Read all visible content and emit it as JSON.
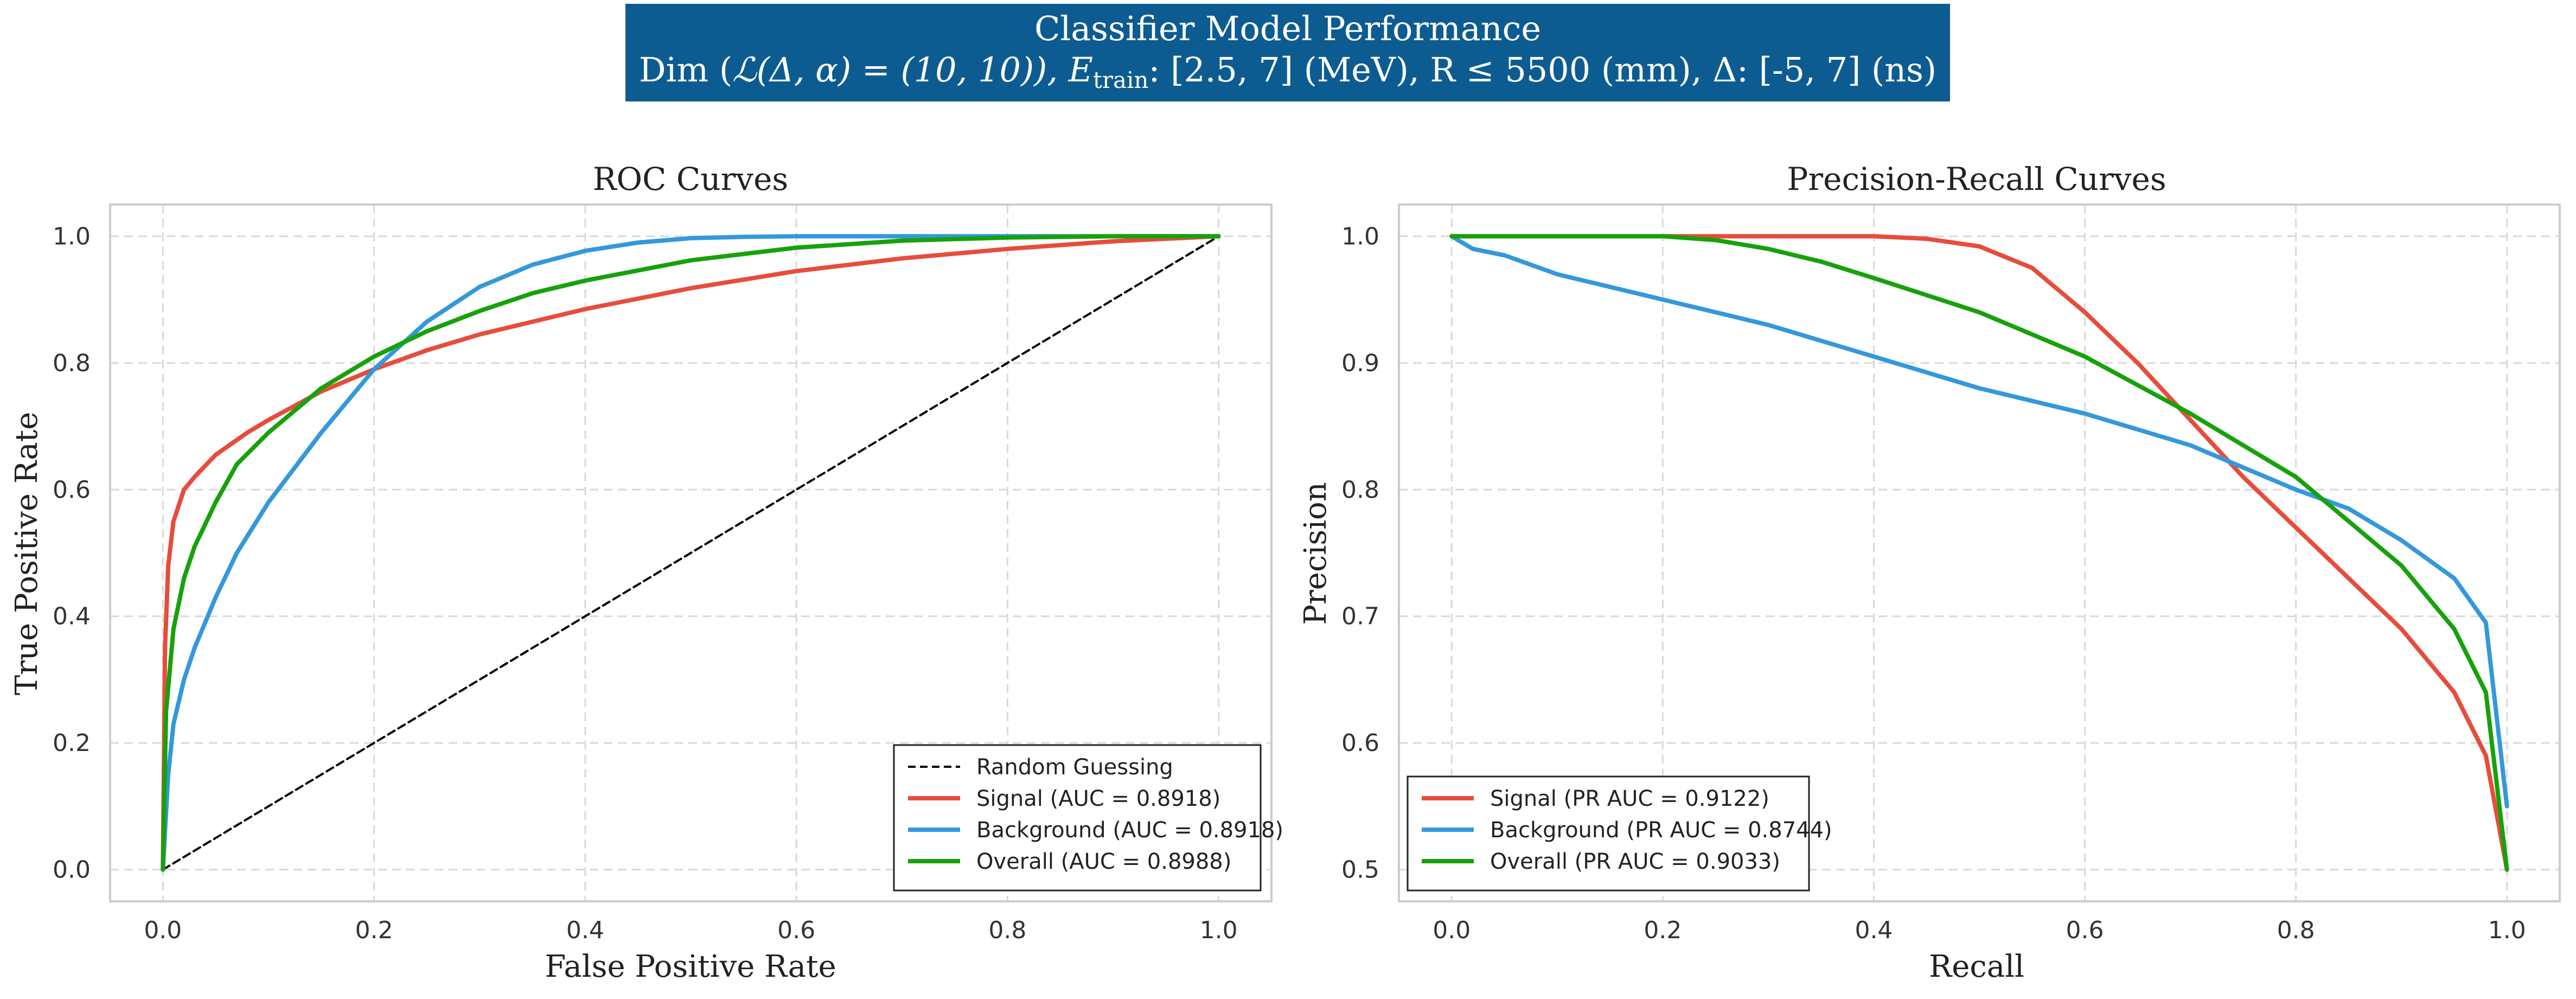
{
  "header": {
    "title_line1": "Classifier Model Performance",
    "title_line2_prefix": "Dim (",
    "title_line2_L": "ℒ(Δ, α) = (10, 10)), E",
    "title_line2_sub": "train",
    "title_line2_rest": ": [2.5, 7] (MeV), R ≤ 5500 (mm), Δ: [-5, 7] (ns)",
    "bg_color": "#0d5c91",
    "text_color": "#ffffff"
  },
  "colors": {
    "signal": "#e74c3c",
    "background": "#3498db",
    "overall": "#17a10c",
    "random": "#000000",
    "grid": "#d9d9d9",
    "frame": "#cccccc"
  },
  "chart_data": [
    {
      "type": "line",
      "title": "ROC Curves",
      "xlabel": "False Positive Rate",
      "ylabel": "True Positive Rate",
      "xlim": [
        -0.05,
        1.05
      ],
      "ylim": [
        -0.05,
        1.05
      ],
      "xticks": [
        0.0,
        0.2,
        0.4,
        0.6,
        0.8,
        1.0
      ],
      "yticks": [
        0.0,
        0.2,
        0.4,
        0.6,
        0.8,
        1.0
      ],
      "xtick_labels": [
        "0.0",
        "0.2",
        "0.4",
        "0.6",
        "0.8",
        "1.0"
      ],
      "ytick_labels": [
        "0.0",
        "0.2",
        "0.4",
        "0.6",
        "0.8",
        "1.0"
      ],
      "grid": true,
      "legend_position": "lower-right",
      "series": [
        {
          "name": "Random Guessing",
          "color_key": "random",
          "dashed": true,
          "x": [
            0,
            1
          ],
          "y": [
            0,
            1
          ]
        },
        {
          "name": "Signal (AUC = 0.8918)",
          "color_key": "signal",
          "x": [
            0,
            0.002,
            0.005,
            0.01,
            0.02,
            0.03,
            0.05,
            0.08,
            0.1,
            0.15,
            0.2,
            0.25,
            0.3,
            0.4,
            0.5,
            0.6,
            0.7,
            0.8,
            0.9,
            1.0
          ],
          "y": [
            0,
            0.35,
            0.48,
            0.55,
            0.6,
            0.62,
            0.655,
            0.69,
            0.71,
            0.755,
            0.79,
            0.82,
            0.845,
            0.885,
            0.918,
            0.945,
            0.965,
            0.98,
            0.992,
            1.0
          ]
        },
        {
          "name": "Background (AUC = 0.8918)",
          "color_key": "background",
          "x": [
            0,
            0.005,
            0.01,
            0.02,
            0.03,
            0.05,
            0.07,
            0.1,
            0.15,
            0.2,
            0.25,
            0.3,
            0.35,
            0.4,
            0.45,
            0.5,
            0.55,
            0.6,
            0.7,
            0.8,
            1.0
          ],
          "y": [
            0,
            0.15,
            0.23,
            0.3,
            0.35,
            0.43,
            0.5,
            0.58,
            0.69,
            0.79,
            0.865,
            0.92,
            0.955,
            0.977,
            0.99,
            0.997,
            0.999,
            1.0,
            1.0,
            1.0,
            1.0
          ]
        },
        {
          "name": "Overall (AUC = 0.8988)",
          "color_key": "overall",
          "x": [
            0,
            0.003,
            0.01,
            0.02,
            0.03,
            0.05,
            0.07,
            0.1,
            0.15,
            0.2,
            0.25,
            0.3,
            0.35,
            0.4,
            0.5,
            0.6,
            0.7,
            0.8,
            0.9,
            1.0
          ],
          "y": [
            0,
            0.25,
            0.38,
            0.46,
            0.51,
            0.58,
            0.64,
            0.69,
            0.76,
            0.81,
            0.85,
            0.882,
            0.91,
            0.93,
            0.962,
            0.982,
            0.993,
            0.998,
            1.0,
            1.0
          ]
        }
      ]
    },
    {
      "type": "line",
      "title": "Precision-Recall Curves",
      "xlabel": "Recall",
      "ylabel": "Precision",
      "xlim": [
        -0.05,
        1.05
      ],
      "ylim": [
        0.475,
        1.025
      ],
      "xticks": [
        0.0,
        0.2,
        0.4,
        0.6,
        0.8,
        1.0
      ],
      "yticks": [
        0.5,
        0.6,
        0.7,
        0.8,
        0.9,
        1.0
      ],
      "xtick_labels": [
        "0.0",
        "0.2",
        "0.4",
        "0.6",
        "0.8",
        "1.0"
      ],
      "ytick_labels": [
        "0.5",
        "0.6",
        "0.7",
        "0.8",
        "0.9",
        "1.0"
      ],
      "grid": true,
      "legend_position": "lower-left",
      "series": [
        {
          "name": "Signal (PR AUC = 0.9122)",
          "color_key": "signal",
          "x": [
            0,
            0.1,
            0.2,
            0.3,
            0.4,
            0.45,
            0.5,
            0.55,
            0.6,
            0.65,
            0.7,
            0.75,
            0.8,
            0.85,
            0.9,
            0.95,
            0.98,
            1.0
          ],
          "y": [
            1.0,
            1.0,
            1.0,
            1.0,
            1.0,
            0.998,
            0.992,
            0.975,
            0.94,
            0.9,
            0.855,
            0.81,
            0.77,
            0.73,
            0.69,
            0.64,
            0.59,
            0.5
          ]
        },
        {
          "name": "Background (PR AUC = 0.8744)",
          "color_key": "background",
          "x": [
            0,
            0.02,
            0.05,
            0.1,
            0.2,
            0.3,
            0.4,
            0.5,
            0.6,
            0.7,
            0.8,
            0.85,
            0.9,
            0.95,
            0.98,
            1.0
          ],
          "y": [
            1.0,
            0.99,
            0.985,
            0.97,
            0.95,
            0.93,
            0.905,
            0.88,
            0.86,
            0.835,
            0.8,
            0.785,
            0.76,
            0.73,
            0.695,
            0.55
          ]
        },
        {
          "name": "Overall (PR AUC = 0.9033)",
          "color_key": "overall",
          "x": [
            0,
            0.1,
            0.2,
            0.25,
            0.3,
            0.35,
            0.4,
            0.5,
            0.6,
            0.7,
            0.8,
            0.85,
            0.9,
            0.95,
            0.98,
            1.0
          ],
          "y": [
            1.0,
            1.0,
            1.0,
            0.997,
            0.99,
            0.98,
            0.967,
            0.94,
            0.905,
            0.86,
            0.81,
            0.775,
            0.74,
            0.69,
            0.64,
            0.5
          ]
        }
      ]
    }
  ]
}
